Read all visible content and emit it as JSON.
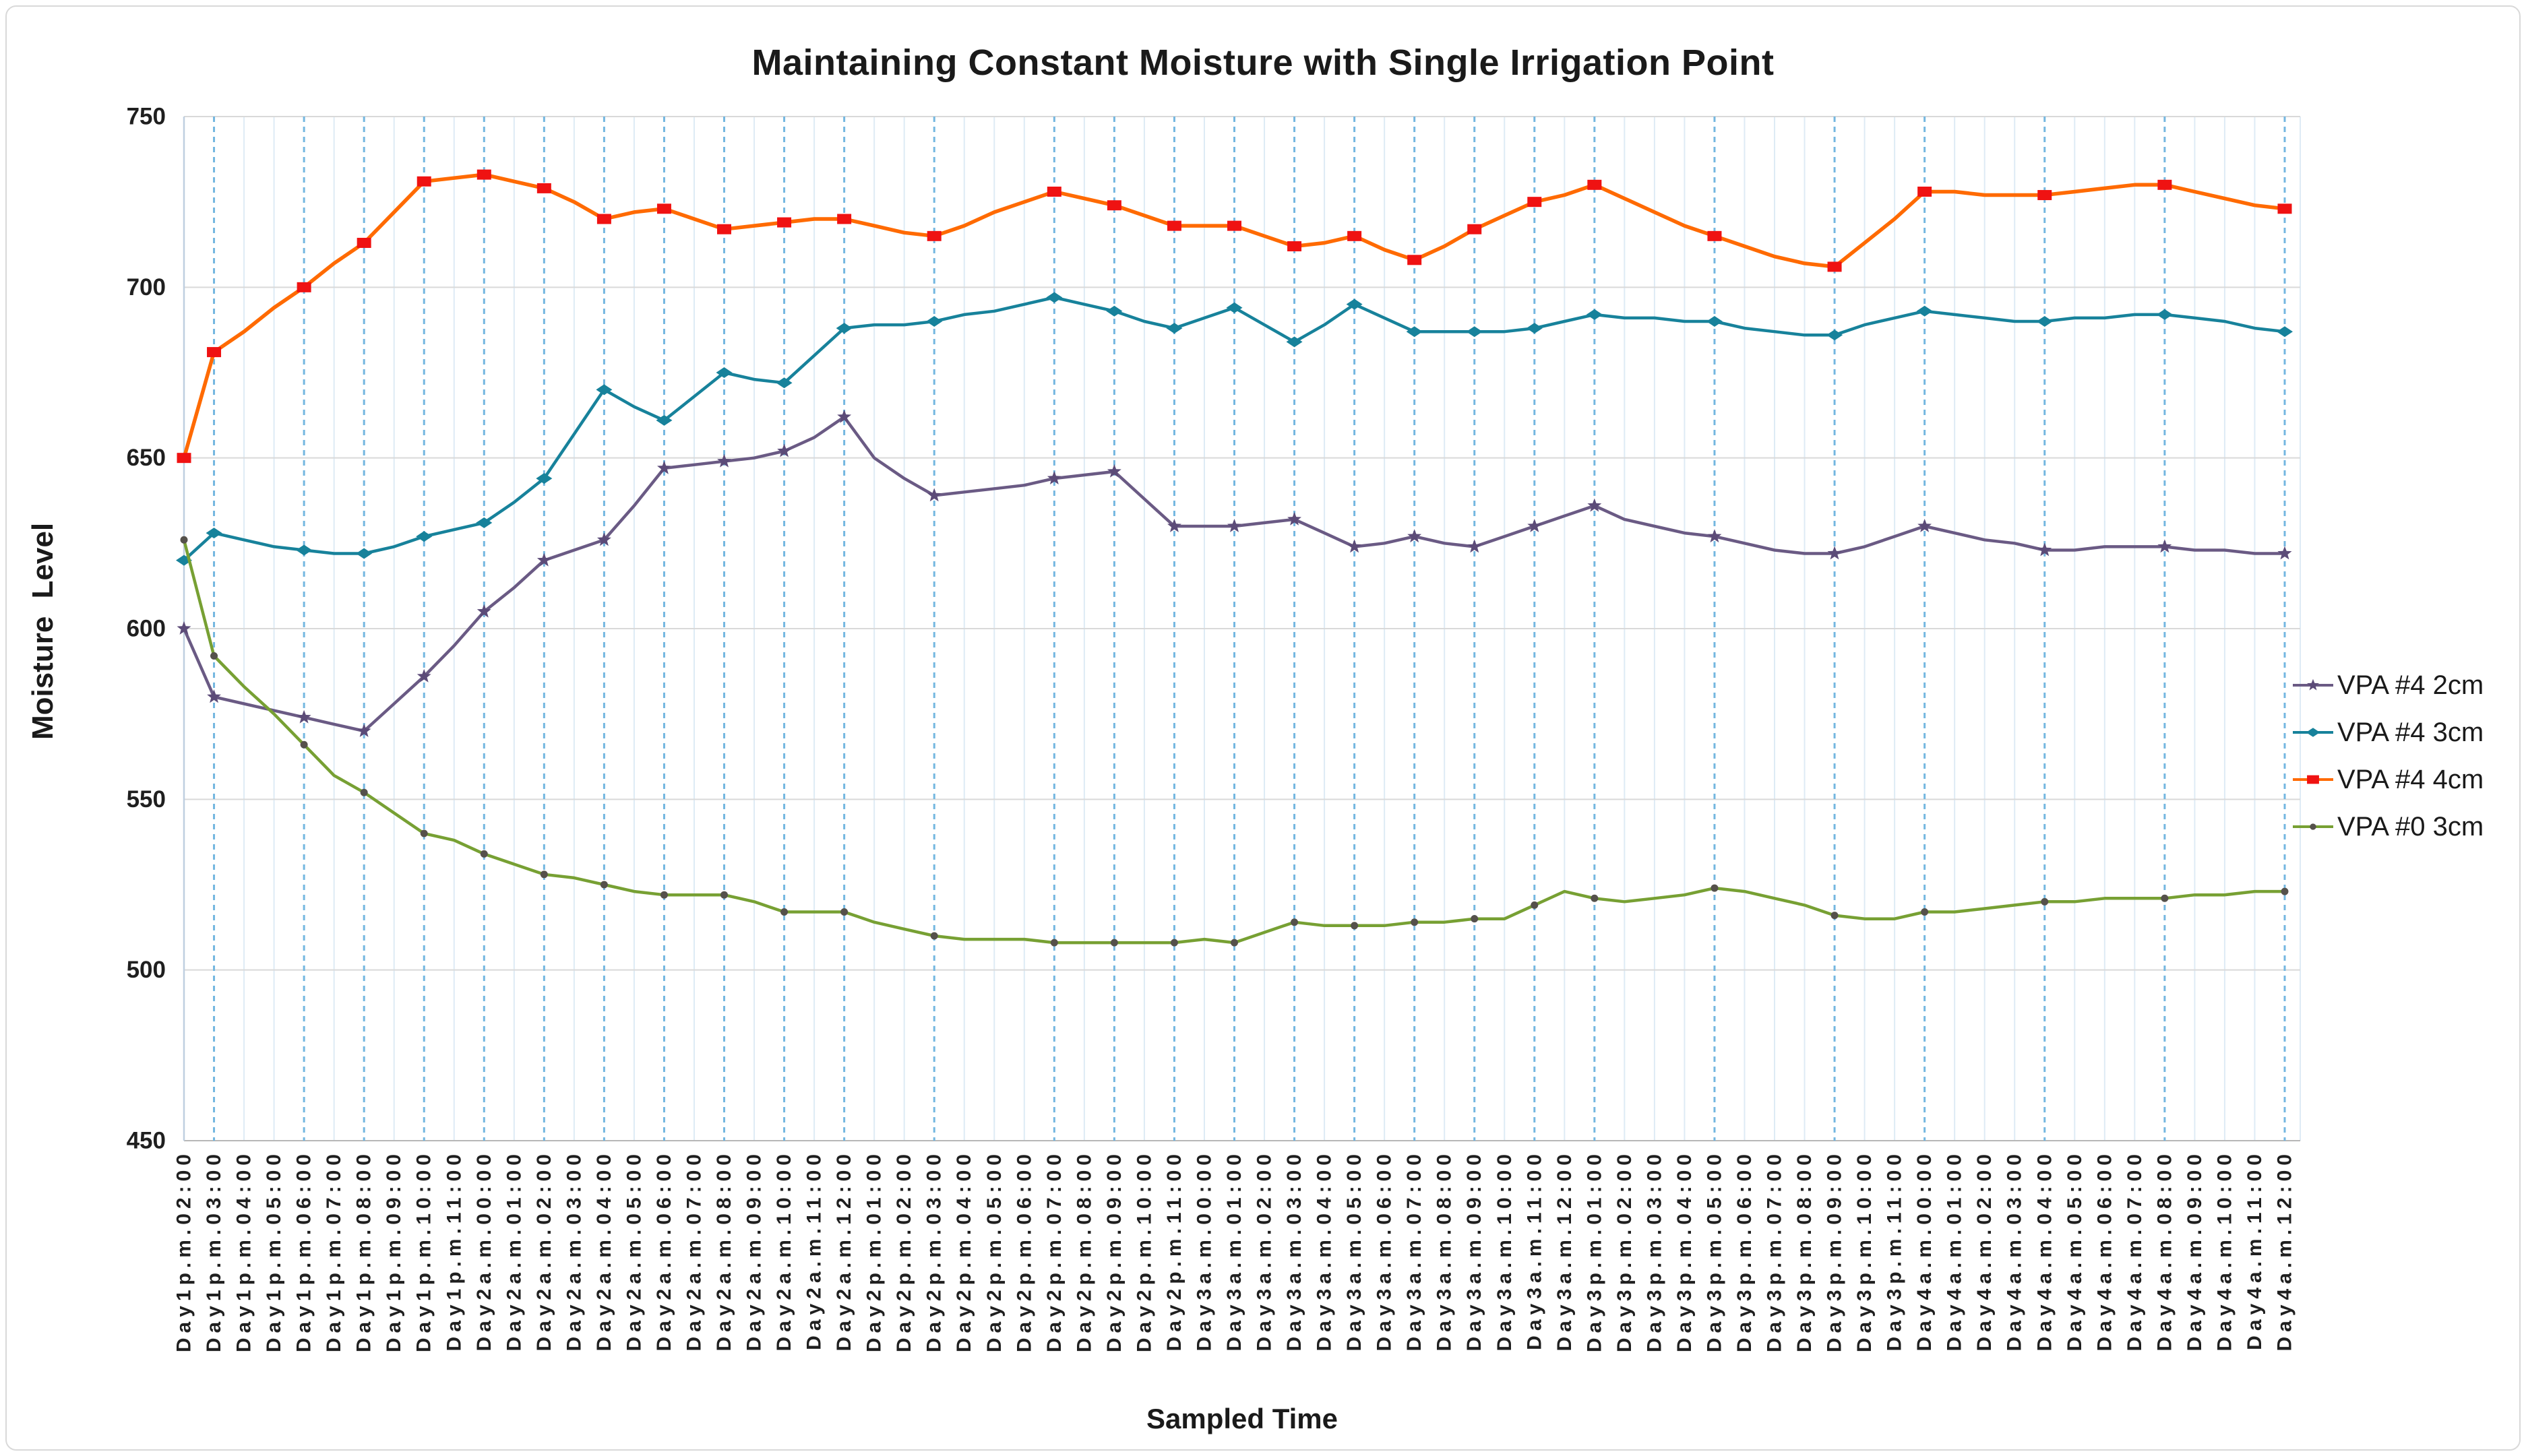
{
  "chart_data": {
    "type": "line",
    "title": "Maintaining Constant Moisture with Single Irrigation Point",
    "xlabel": "Sampled Time",
    "ylabel": "Moisture Level",
    "ylim": [
      450,
      750
    ],
    "yticks": [
      450,
      500,
      550,
      600,
      650,
      700,
      750
    ],
    "grid": "horizontal solid gray; vertical light blue per sample with dashed blue at recorded samples",
    "legend_position": "right",
    "marker_sample_indices": [
      0,
      1,
      4,
      6,
      8,
      10,
      12,
      14,
      16,
      18,
      20,
      22,
      25,
      29,
      31,
      33,
      35,
      37,
      39,
      41,
      43,
      45,
      47,
      51,
      55,
      58,
      62,
      66,
      70
    ],
    "categories": [
      "Day1p.m.02:00",
      "Day1p.m.03:00",
      "Day1p.m.04:00",
      "Day1p.m.05:00",
      "Day1p.m.06:00",
      "Day1p.m.07:00",
      "Day1p.m.08:00",
      "Day1p.m.09:00",
      "Day1p.m.10:00",
      "Day1p.m.11:00",
      "Day2a.m.00:00",
      "Day2a.m.01:00",
      "Day2a.m.02:00",
      "Day2a.m.03:00",
      "Day2a.m.04:00",
      "Day2a.m.05:00",
      "Day2a.m.06:00",
      "Day2a.m.07:00",
      "Day2a.m.08:00",
      "Day2a.m.09:00",
      "Day2a.m.10:00",
      "Day2a.m.11:00",
      "Day2a.m.12:00",
      "Day2p.m.01:00",
      "Day2p.m.02:00",
      "Day2p.m.03:00",
      "Day2p.m.04:00",
      "Day2p.m.05:00",
      "Day2p.m.06:00",
      "Day2p.m.07:00",
      "Day2p.m.08:00",
      "Day2p.m.09:00",
      "Day2p.m.10:00",
      "Day2p.m.11:00",
      "Day3a.m.00:00",
      "Day3a.m.01:00",
      "Day3a.m.02:00",
      "Day3a.m.03:00",
      "Day3a.m.04:00",
      "Day3a.m.05:00",
      "Day3a.m.06:00",
      "Day3a.m.07:00",
      "Day3a.m.08:00",
      "Day3a.m.09:00",
      "Day3a.m.10:00",
      "Day3a.m.11:00",
      "Day3a.m.12:00",
      "Day3p.m.01:00",
      "Day3p.m.02:00",
      "Day3p.m.03:00",
      "Day3p.m.04:00",
      "Day3p.m.05:00",
      "Day3p.m.06:00",
      "Day3p.m.07:00",
      "Day3p.m.08:00",
      "Day3p.m.09:00",
      "Day3p.m.10:00",
      "Day3p.m.11:00",
      "Day4a.m.00:00",
      "Day4a.m.01:00",
      "Day4a.m.02:00",
      "Day4a.m.03:00",
      "Day4a.m.04:00",
      "Day4a.m.05:00",
      "Day4a.m.06:00",
      "Day4a.m.07:00",
      "Day4a.m.08:00",
      "Day4a.m.09:00",
      "Day4a.m.10:00",
      "Day4a.m.11:00",
      "Day4a.m.12:00"
    ],
    "series": [
      {
        "name": "VPA #4 2cm",
        "color": "#6A5A84",
        "marker": "star",
        "marker_color": "#5C4B78",
        "values": [
          600,
          580,
          578,
          576,
          574,
          572,
          570,
          578,
          586,
          595,
          605,
          612,
          620,
          623,
          626,
          636,
          647,
          648,
          649,
          650,
          652,
          656,
          662,
          650,
          644,
          639,
          640,
          641,
          642,
          644,
          645,
          646,
          638,
          630,
          630,
          630,
          631,
          632,
          628,
          624,
          625,
          627,
          625,
          624,
          627,
          630,
          633,
          636,
          632,
          630,
          628,
          627,
          625,
          623,
          622,
          622,
          624,
          627,
          630,
          628,
          626,
          625,
          623,
          623,
          624,
          624,
          624,
          623,
          623,
          622,
          622
        ]
      },
      {
        "name": "VPA #4 3cm",
        "color": "#17829B",
        "marker": "diamond",
        "marker_color": "#17829B",
        "values": [
          620,
          628,
          626,
          624,
          623,
          622,
          622,
          624,
          627,
          629,
          631,
          637,
          644,
          657,
          670,
          665,
          661,
          668,
          675,
          673,
          672,
          680,
          688,
          689,
          689,
          690,
          692,
          693,
          695,
          697,
          695,
          693,
          690,
          688,
          691,
          694,
          689,
          684,
          689,
          695,
          691,
          687,
          687,
          687,
          687,
          688,
          690,
          692,
          691,
          691,
          690,
          690,
          688,
          687,
          686,
          686,
          689,
          691,
          693,
          692,
          691,
          690,
          690,
          691,
          691,
          692,
          692,
          691,
          690,
          688,
          687
        ]
      },
      {
        "name": "VPA #4 4cm",
        "color": "#FF6A00",
        "marker": "square",
        "marker_color": "#EF1212",
        "values": [
          650,
          681,
          687,
          694,
          700,
          707,
          713,
          722,
          731,
          732,
          733,
          731,
          729,
          725,
          720,
          722,
          723,
          720,
          717,
          718,
          719,
          720,
          720,
          718,
          716,
          715,
          718,
          722,
          725,
          728,
          726,
          724,
          721,
          718,
          718,
          718,
          715,
          712,
          713,
          715,
          711,
          708,
          712,
          717,
          721,
          725,
          727,
          730,
          726,
          722,
          718,
          715,
          712,
          709,
          707,
          706,
          713,
          720,
          728,
          728,
          727,
          727,
          727,
          728,
          729,
          730,
          730,
          728,
          726,
          724,
          723
        ]
      },
      {
        "name": "VPA #0 3cm",
        "color": "#77A033",
        "marker": "dot",
        "marker_color": "#55514B",
        "values": [
          626,
          592,
          583,
          575,
          566,
          557,
          552,
          546,
          540,
          538,
          534,
          531,
          528,
          527,
          525,
          523,
          522,
          522,
          522,
          520,
          517,
          517,
          517,
          514,
          512,
          510,
          509,
          509,
          509,
          508,
          508,
          508,
          508,
          508,
          509,
          508,
          511,
          514,
          513,
          513,
          513,
          514,
          514,
          515,
          515,
          519,
          523,
          521,
          520,
          521,
          522,
          524,
          523,
          521,
          519,
          516,
          515,
          515,
          517,
          517,
          518,
          519,
          520,
          520,
          521,
          521,
          521,
          522,
          522,
          523,
          523
        ]
      }
    ],
    "style_colors": {
      "h_gridline": "#D9D9D9",
      "v_gridline_faint": "#DEEBF5",
      "v_gridline_dashed": "#74B7E0",
      "axis_line": "#BFCFE0",
      "bottom_axis_line": "#B7B7B7",
      "tick_label": "#1F1F1F",
      "chart_border": "#D9D9D9"
    }
  }
}
